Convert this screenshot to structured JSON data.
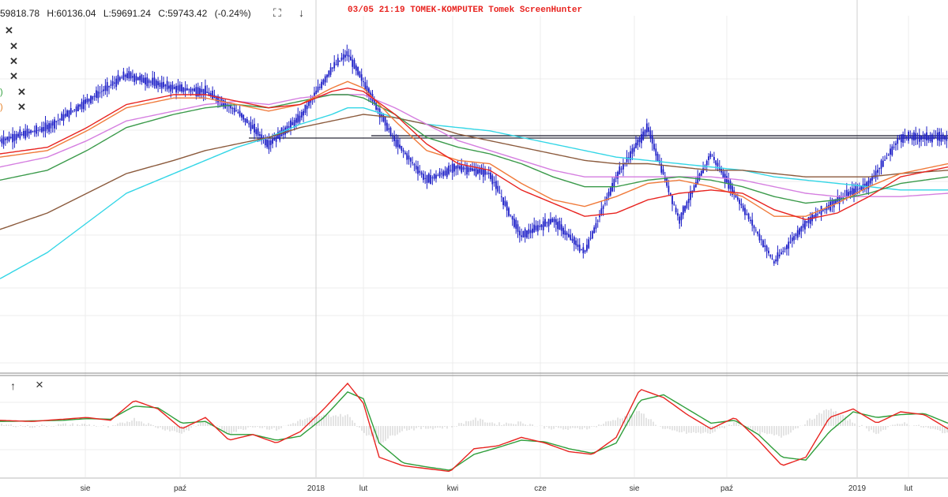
{
  "quote": {
    "open": "59818.78",
    "high": "H:60136.04",
    "low": "L:59691.24",
    "close": "C:59743.42",
    "change": "(-0.24%)"
  },
  "watermark": "03/05  21:19  TOMEK-KOMPUTER  Tomek  ScreenHunter",
  "legend_tags": [
    {
      "text": ")",
      "color": "#2e9e3a"
    },
    {
      "text": ")",
      "color": "#e67e22"
    }
  ],
  "osc_buttons": {
    "up": "↑",
    "close": "×"
  },
  "toolbar": {
    "fullscreen": "⛶",
    "down": "↓"
  },
  "colors": {
    "candles": "#1d1fc7",
    "ma_red": "#e8231f",
    "ma_orange": "#f07a3a",
    "ma_green": "#3a9a4a",
    "ma_violet": "#d57ee0",
    "ma_cyan": "#33d6e6",
    "ma_brown": "#8b5a3c",
    "osc_red": "#e8231f",
    "osc_green": "#2e9e3a"
  },
  "chart_data": {
    "type": "line",
    "x_ticks": [
      "sie",
      "paź",
      "2018",
      "lut",
      "kwi",
      "cze",
      "sie",
      "paź",
      "2019",
      "lut"
    ],
    "grid": true,
    "main_series_anchor_x": [
      0,
      60,
      110,
      160,
      220,
      260,
      300,
      340,
      380,
      420,
      440,
      460,
      500,
      540,
      580,
      620,
      660,
      700,
      740,
      780,
      820,
      860,
      900,
      940,
      980,
      1020,
      1060,
      1100,
      1140,
      1200
    ],
    "price": [
      57500,
      57900,
      58700,
      59500,
      59100,
      59000,
      58400,
      57400,
      58200,
      59700,
      60150,
      59300,
      57500,
      56300,
      56700,
      56500,
      54600,
      55100,
      54100,
      56400,
      57900,
      55100,
      57100,
      55500,
      53800,
      55000,
      55700,
      56200,
      57600,
      57600
    ],
    "ma_red": [
      57100,
      57300,
      57900,
      58600,
      58900,
      58900,
      58700,
      58500,
      58600,
      59000,
      59100,
      59000,
      58300,
      57400,
      56800,
      56600,
      56000,
      55600,
      55200,
      55300,
      55700,
      55900,
      56000,
      55900,
      55400,
      55100,
      55300,
      55800,
      56400,
      56700
    ],
    "ma_orange": [
      57000,
      57200,
      57800,
      58500,
      58800,
      58800,
      58600,
      58400,
      58600,
      59100,
      59300,
      59100,
      58100,
      57200,
      56900,
      56800,
      56200,
      55700,
      55500,
      55800,
      56200,
      56300,
      56100,
      55800,
      55200,
      55200,
      55600,
      56100,
      56500,
      56800
    ],
    "ma_green": [
      56300,
      56600,
      57200,
      57900,
      58300,
      58500,
      58600,
      58500,
      58700,
      58900,
      58900,
      58800,
      58300,
      57600,
      57300,
      57100,
      56800,
      56400,
      56100,
      56100,
      56300,
      56400,
      56300,
      56100,
      55800,
      55600,
      55700,
      55900,
      56200,
      56400
    ],
    "ma_violet": [
      56700,
      57000,
      57500,
      58100,
      58400,
      58600,
      58700,
      58600,
      58800,
      58900,
      58900,
      58900,
      58500,
      58000,
      57500,
      57200,
      56900,
      56600,
      56400,
      56400,
      56400,
      56400,
      56400,
      56300,
      56100,
      55900,
      55800,
      55800,
      55800,
      55900
    ],
    "ma_cyan": [
      53300,
      54100,
      55000,
      55900,
      56500,
      56900,
      57300,
      57600,
      58000,
      58300,
      58500,
      58500,
      58200,
      58000,
      57900,
      57800,
      57600,
      57400,
      57200,
      57000,
      56900,
      56800,
      56700,
      56600,
      56400,
      56300,
      56200,
      56100,
      56000,
      56000
    ],
    "ma_brown": [
      54800,
      55300,
      55900,
      56500,
      56900,
      57200,
      57400,
      57600,
      57900,
      58100,
      58200,
      58300,
      58200,
      58000,
      57700,
      57500,
      57300,
      57100,
      56900,
      56800,
      56800,
      56700,
      56600,
      56600,
      56500,
      56400,
      56400,
      56400,
      56500,
      56600
    ],
    "horizontal_levels": [
      57650,
      57580
    ],
    "oscillator": {
      "x": [
        0,
        40,
        80,
        110,
        140,
        170,
        200,
        230,
        260,
        290,
        320,
        350,
        380,
        410,
        440,
        460,
        480,
        510,
        540,
        570,
        600,
        630,
        660,
        690,
        720,
        750,
        780,
        810,
        840,
        870,
        900,
        930,
        960,
        990,
        1020,
        1050,
        1080,
        1110,
        1140,
        1170,
        1200
      ],
      "fast": [
        10,
        8,
        12,
        15,
        10,
        45,
        30,
        -5,
        15,
        -25,
        -15,
        -30,
        -10,
        30,
        75,
        40,
        -55,
        -70,
        -75,
        -80,
        -40,
        -35,
        -20,
        -30,
        -45,
        -50,
        -20,
        65,
        50,
        20,
        -5,
        15,
        -25,
        -70,
        -55,
        15,
        30,
        5,
        25,
        20,
        -5
      ],
      "slow": [
        8,
        9,
        10,
        13,
        12,
        35,
        32,
        5,
        8,
        -15,
        -15,
        -25,
        -18,
        15,
        60,
        48,
        -30,
        -65,
        -72,
        -78,
        -50,
        -38,
        -25,
        -28,
        -40,
        -48,
        -30,
        45,
        55,
        30,
        5,
        10,
        -15,
        -55,
        -60,
        -10,
        25,
        15,
        20,
        22,
        5
      ]
    }
  }
}
